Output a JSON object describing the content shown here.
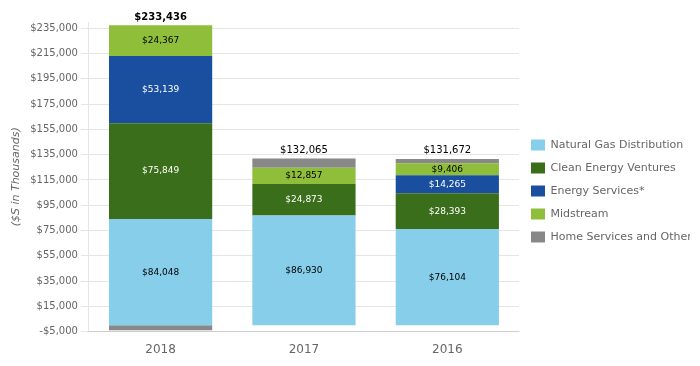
{
  "chart_data": {
    "type": "bar",
    "stacked": true,
    "categories": [
      "2018",
      "2017",
      "2016"
    ],
    "series": [
      {
        "name": "Natural Gas Distribution",
        "color": "#87CEEB",
        "values": [
          84048,
          86930,
          76104
        ],
        "value_labels": [
          "$84,048",
          "$86,930",
          "$76,104"
        ]
      },
      {
        "name": "Clean Energy Ventures",
        "color": "#3a6e1a",
        "values": [
          75849,
          24873,
          28393
        ],
        "value_labels": [
          "$75,849",
          "$24,873",
          "$28,393"
        ]
      },
      {
        "name": "Energy Services*",
        "color": "#1a4fa0",
        "values": [
          53139,
          0,
          14265
        ],
        "value_labels": [
          "$53,139",
          null,
          "$14,265"
        ]
      },
      {
        "name": "Midstream",
        "color": "#8fbe3a",
        "values": [
          24367,
          12857,
          9406
        ],
        "value_labels": [
          "$24,367",
          "$12,857",
          "$9,406"
        ]
      },
      {
        "name": "Home Services and Other",
        "color": "#888888",
        "values": [
          -3967,
          7405,
          3504
        ]
      }
    ],
    "data_labels": true,
    "totals": [
      233436,
      132065,
      131672
    ],
    "total_labels": [
      "$233,436",
      "$132,065",
      "$131,672"
    ],
    "y_label": "($S in Thousands)",
    "ylim": [
      -5000,
      240000
    ],
    "yticks": [
      {
        "value": -5000,
        "label": "-$5,000"
      },
      {
        "value": 15000,
        "label": "$15,000"
      },
      {
        "value": 35000,
        "label": "$35,000"
      },
      {
        "value": 55000,
        "label": "$55,000"
      },
      {
        "value": 75000,
        "label": "$75,000"
      },
      {
        "value": 95000,
        "label": "$95,000"
      },
      {
        "value": 115000,
        "label": "$115,000"
      },
      {
        "value": 135000,
        "label": "$135,000"
      },
      {
        "value": 155000,
        "label": "$155,000"
      },
      {
        "value": 175000,
        "label": "$175,000"
      },
      {
        "value": 195000,
        "label": "$195,000"
      },
      {
        "value": 215000,
        "label": "$215,000"
      },
      {
        "value": 235000,
        "label": "$235,000"
      }
    ],
    "grid": true,
    "legend": "right"
  }
}
